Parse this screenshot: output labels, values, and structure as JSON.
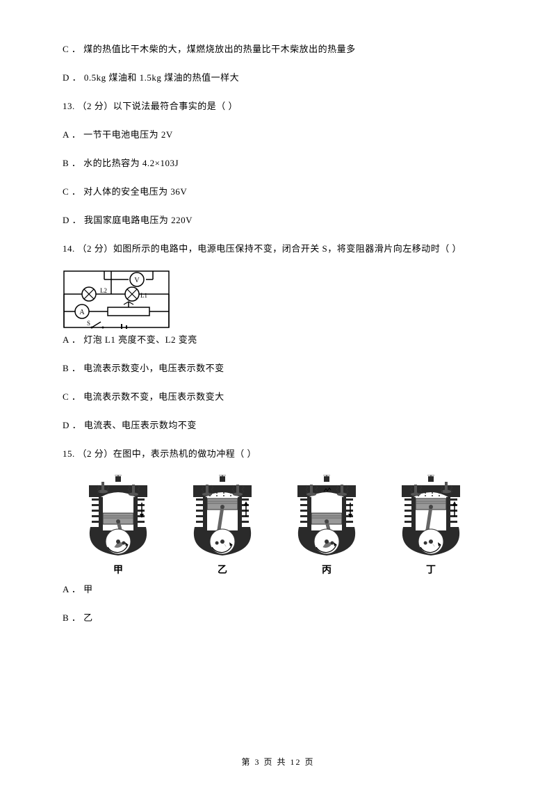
{
  "items": {
    "prevC": "C ． 煤的热值比干木柴的大，煤燃烧放出的热量比干木柴放出的热量多",
    "prevD": "D ． 0.5kg 煤油和 1.5kg 煤油的热值一样大",
    "q13": "13.  （2 分）以下说法最符合事实的是（     ）",
    "q13A": "A ． 一节干电池电压为 2V",
    "q13B": "B ． 水的比热容为 4.2×103J",
    "q13C": "C ． 对人体的安全电压为 36V",
    "q13D": "D ． 我国家庭电路电压为 220V",
    "q14": "14.  （2 分）如图所示的电路中，电源电压保持不变，闭合开关 S，将变阻器滑片向左移动时（     ）",
    "q14A": "A ． 灯泡 L1 亮度不变、L2 变亮",
    "q14B": "B ． 电流表示数变小，电压表示数不变",
    "q14C": "C ． 电流表示数不变，电压表示数变大",
    "q14D": "D ． 电流表、电压表示数均不变",
    "q15": "15.  （2 分）在图中，表示热机的做功冲程（     ）",
    "q15A": "A ． 甲",
    "q15B": "B ． 乙"
  },
  "circuit": {
    "labels": {
      "L1": "L1",
      "L2": "L2",
      "A": "A",
      "V": "V",
      "S": "S"
    },
    "stroke": "#000000"
  },
  "engines": {
    "labels": [
      "甲",
      "乙",
      "丙",
      "丁"
    ],
    "width": 120,
    "height": 120,
    "colors": {
      "body": "#2a2a2a",
      "light": "#888888",
      "bg": "#ffffff"
    }
  },
  "footer": {
    "text": "第 3 页 共 12 页"
  }
}
